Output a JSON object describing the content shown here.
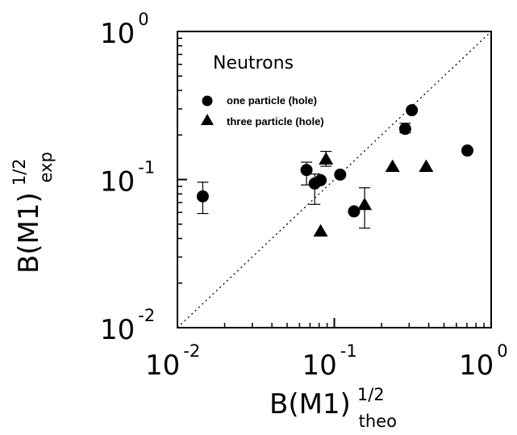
{
  "chart_data": {
    "type": "scatter",
    "title": "",
    "xscale": "log",
    "yscale": "log",
    "xlim": [
      0.01,
      1
    ],
    "ylim": [
      0.01,
      1
    ],
    "xlabel": {
      "main": "B(M1)",
      "sup": "1/2",
      "sub": "theo"
    },
    "ylabel": {
      "main": "B(M1)",
      "sup": "1/2",
      "sub": "exp"
    },
    "x_ticks": [
      {
        "base": "10",
        "exp": "-2"
      },
      {
        "base": "10",
        "exp": "-1"
      },
      {
        "base": "10",
        "exp": "0"
      }
    ],
    "y_ticks": [
      {
        "base": "10",
        "exp": "-2"
      },
      {
        "base": "10",
        "exp": "-1"
      },
      {
        "base": "10",
        "exp": "0"
      }
    ],
    "legend": {
      "title": "Neutrons",
      "position": "top-left"
    },
    "reference_line": {
      "style": "dotted",
      "from": [
        0.01,
        0.01
      ],
      "to": [
        1,
        1
      ]
    },
    "grid": false,
    "series": [
      {
        "name": "one particle (hole)",
        "marker": "circle",
        "points": [
          {
            "x": 0.0145,
            "y": 0.077,
            "err_low": 0.059,
            "err_high": 0.096
          },
          {
            "x": 0.0665,
            "y": 0.116,
            "err_low": 0.092,
            "err_high": 0.131
          },
          {
            "x": 0.075,
            "y": 0.094,
            "err_low": 0.068,
            "err_high": 0.109
          },
          {
            "x": 0.0818,
            "y": 0.099
          },
          {
            "x": 0.109,
            "y": 0.108
          },
          {
            "x": 0.1335,
            "y": 0.061
          },
          {
            "x": 0.283,
            "y": 0.22,
            "err_low": 0.207,
            "err_high": 0.24
          },
          {
            "x": 0.312,
            "y": 0.294
          },
          {
            "x": 0.705,
            "y": 0.157
          }
        ]
      },
      {
        "name": "three particle (hole)",
        "marker": "triangle",
        "points": [
          {
            "x": 0.0818,
            "y": 0.045
          },
          {
            "x": 0.0885,
            "y": 0.138,
            "err_low": 0.123,
            "err_high": 0.155
          },
          {
            "x": 0.156,
            "y": 0.068,
            "err_low": 0.047,
            "err_high": 0.088
          },
          {
            "x": 0.235,
            "y": 0.123
          },
          {
            "x": 0.385,
            "y": 0.123
          }
        ]
      }
    ]
  }
}
